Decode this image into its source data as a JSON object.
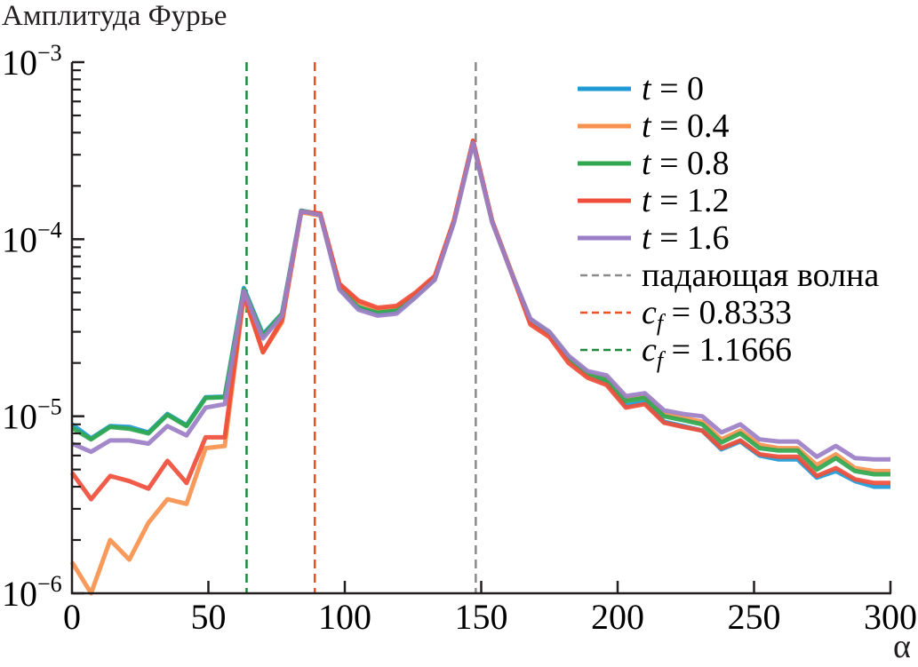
{
  "chart_data": {
    "type": "line",
    "title": "",
    "ylabel": "Амплитуда Фурье",
    "xlabel": "α",
    "yscale": "log",
    "xlim": [
      0,
      300
    ],
    "ylim": [
      1e-06,
      0.001
    ],
    "x_ticks": [
      0,
      50,
      100,
      150,
      200,
      250,
      300
    ],
    "x_tick_labels": [
      "0",
      "50",
      "100",
      "150",
      "200",
      "250",
      "300"
    ],
    "y_ticks": [
      1e-06,
      1e-05,
      0.0001,
      0.001
    ],
    "y_tick_labels": [
      {
        "base": "10",
        "exp": "−6"
      },
      {
        "base": "10",
        "exp": "−5"
      },
      {
        "base": "10",
        "exp": "−4"
      },
      {
        "base": "10",
        "exp": "−3"
      }
    ],
    "grid": false,
    "legend_position": "top-right",
    "x": [
      0,
      7,
      14,
      21,
      28,
      35,
      42,
      49,
      56,
      63,
      70,
      77,
      84,
      91,
      98,
      105,
      112,
      119,
      126,
      133,
      140,
      147,
      154,
      161,
      168,
      175,
      182,
      189,
      196,
      203,
      210,
      217,
      224,
      231,
      238,
      245,
      252,
      259,
      266,
      273,
      280,
      287,
      294,
      300
    ],
    "series": [
      {
        "name": "t = 0",
        "color": "#1f9ad6",
        "values": [
          9e-06,
          7.5e-06,
          8.8e-06,
          8.7e-06,
          8.1e-06,
          1.03e-05,
          8.9e-06,
          1.28e-05,
          1.29e-05,
          5.3e-05,
          2.9e-05,
          3.8e-05,
          0.000145,
          0.000138,
          5.3e-05,
          4.2e-05,
          3.8e-05,
          3.9e-05,
          4.8e-05,
          6e-05,
          0.000125,
          0.00035,
          0.000125,
          6.5e-05,
          3.5e-05,
          2.9e-05,
          2.1e-05,
          1.7e-05,
          1.55e-05,
          1.15e-05,
          1.2e-05,
          9.3e-06,
          8.8e-06,
          8.3e-06,
          6.5e-06,
          7.2e-06,
          6e-06,
          5.7e-06,
          5.7e-06,
          4.5e-06,
          4.9e-06,
          4.3e-06,
          4e-06,
          4e-06
        ]
      },
      {
        "name": "t = 0.4",
        "color": "#f7914d",
        "values": [
          1.5e-06,
          1e-06,
          2e-06,
          1.55e-06,
          2.5e-06,
          3.4e-06,
          3.2e-06,
          6.6e-06,
          6.8e-06,
          4.8e-05,
          2.3e-05,
          3.4e-05,
          0.000142,
          0.000136,
          5.6e-05,
          4.4e-05,
          4e-05,
          4.1e-05,
          4.9e-05,
          6.1e-05,
          0.000127,
          0.00036,
          0.000127,
          6.6e-05,
          3.4e-05,
          2.9e-05,
          2.1e-05,
          1.7e-05,
          1.65e-05,
          1.25e-05,
          1.3e-05,
          1.03e-05,
          9.8e-06,
          9.3e-06,
          7.4e-06,
          8.3e-06,
          6.9e-06,
          6.6e-06,
          6.6e-06,
          5.3e-06,
          6.1e-06,
          5.1e-06,
          4.9e-06,
          4.9e-06
        ]
      },
      {
        "name": "t = 0.8",
        "color": "#30a84f",
        "values": [
          8.6e-06,
          7.4e-06,
          8.7e-06,
          8.5e-06,
          8e-06,
          1.02e-05,
          8.8e-06,
          1.27e-05,
          1.28e-05,
          5.2e-05,
          2.85e-05,
          3.8e-05,
          0.000145,
          0.000138,
          5.3e-05,
          4.1e-05,
          3.85e-05,
          3.95e-05,
          4.8e-05,
          6e-05,
          0.000126,
          0.000355,
          0.000126,
          6.5e-05,
          3.5e-05,
          2.95e-05,
          2.15e-05,
          1.75e-05,
          1.6e-05,
          1.22e-05,
          1.27e-05,
          1e-05,
          9.5e-06,
          9e-06,
          7.1e-06,
          8e-06,
          6.6e-06,
          6.4e-06,
          6.4e-06,
          5e-06,
          5.8e-06,
          4.9e-06,
          4.7e-06,
          4.7e-06
        ]
      },
      {
        "name": "t = 1.2",
        "color": "#ef4e3a",
        "values": [
          4.8e-06,
          3.4e-06,
          4.6e-06,
          4.3e-06,
          3.9e-06,
          5.6e-06,
          4.2e-06,
          7.6e-06,
          7.6e-06,
          4.9e-05,
          2.3e-05,
          3.5e-05,
          0.000143,
          0.00014,
          5.6e-05,
          4.5e-05,
          4.1e-05,
          4.2e-05,
          5e-05,
          6.2e-05,
          0.000128,
          0.00036,
          0.000127,
          6.5e-05,
          3.3e-05,
          2.8e-05,
          2e-05,
          1.65e-05,
          1.5e-05,
          1.12e-05,
          1.17e-05,
          9.2e-06,
          8.7e-06,
          8.3e-06,
          6.6e-06,
          7.3e-06,
          6.1e-06,
          5.9e-06,
          5.9e-06,
          4.6e-06,
          5.1e-06,
          4.4e-06,
          4.2e-06,
          4.2e-06
        ]
      },
      {
        "name": "t = 1.6",
        "color": "#9b7fc6",
        "values": [
          7e-06,
          6.3e-06,
          7.3e-06,
          7.3e-06,
          7e-06,
          8.8e-06,
          7.8e-06,
          1.12e-05,
          1.17e-05,
          5.1e-05,
          2.75e-05,
          3.7e-05,
          0.000144,
          0.000137,
          5.2e-05,
          4e-05,
          3.7e-05,
          3.8e-05,
          4.7e-05,
          5.9e-05,
          0.000124,
          0.00035,
          0.000125,
          6.5e-05,
          3.55e-05,
          3e-05,
          2.2e-05,
          1.8e-05,
          1.7e-05,
          1.3e-05,
          1.35e-05,
          1.08e-05,
          1.03e-05,
          1e-05,
          8.1e-06,
          9e-06,
          7.4e-06,
          7.2e-06,
          7.2e-06,
          5.9e-06,
          6.8e-06,
          5.8e-06,
          5.7e-06,
          5.7e-06
        ]
      }
    ],
    "vertical_lines": [
      {
        "name": "падающая волна",
        "x": 148,
        "color": "#8a8a8a",
        "style": "dashed"
      },
      {
        "name": "c_f = 0.8333",
        "x": 89,
        "color": "#f04e23",
        "style": "dashed"
      },
      {
        "name": "c_f = 1.1666",
        "x": 64,
        "color": "#1b8a3a",
        "style": "dashed"
      }
    ],
    "legend": [
      {
        "label": "t = 0",
        "kind": "solid",
        "color": "#1f9ad6",
        "italic_var": "t",
        "rest": " = 0"
      },
      {
        "label": "t = 0.4",
        "kind": "solid",
        "color": "#f7914d",
        "italic_var": "t",
        "rest": " = 0.4"
      },
      {
        "label": "t = 0.8",
        "kind": "solid",
        "color": "#30a84f",
        "italic_var": "t",
        "rest": " = 0.8"
      },
      {
        "label": "t = 1.2",
        "kind": "solid",
        "color": "#ef4e3a",
        "italic_var": "t",
        "rest": " = 1.2"
      },
      {
        "label": "t = 1.6",
        "kind": "solid",
        "color": "#9b7fc6",
        "italic_var": "t",
        "rest": " = 1.6"
      },
      {
        "label": "падающая волна",
        "kind": "dashed",
        "color": "#8a8a8a",
        "italic_var": "",
        "rest": "падающая волна"
      },
      {
        "label": "c_f = 0.8333",
        "kind": "dashed",
        "color": "#f04e23",
        "italic_var": "c",
        "sub": "f",
        "rest": " = 0.8333"
      },
      {
        "label": "c_f = 1.1666",
        "kind": "dashed",
        "color": "#1b8a3a",
        "italic_var": "c",
        "sub": "f",
        "rest": " = 1.1666"
      }
    ]
  }
}
